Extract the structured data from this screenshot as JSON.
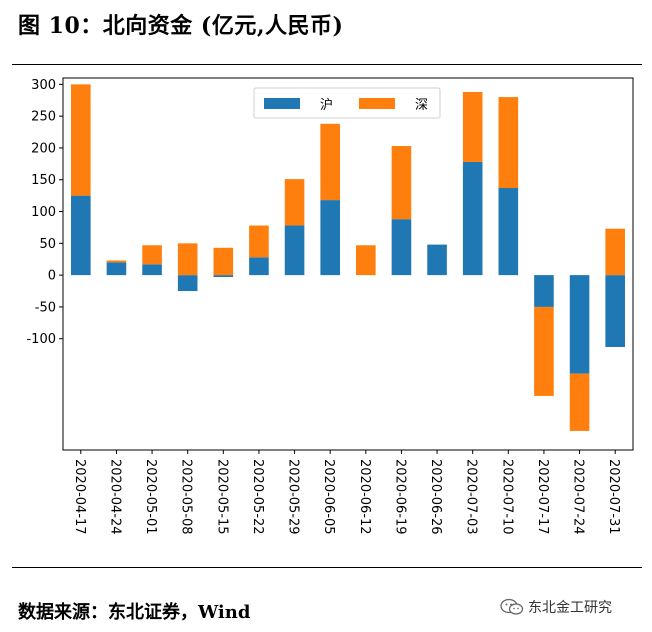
{
  "header": {
    "title": "图 10：北向资金 (亿元,人民币)"
  },
  "footer": {
    "source": "数据来源：东北证券，Wind",
    "watermark": "东北金工研究",
    "watermark_icon": "wechat-icon"
  },
  "chart_data": {
    "type": "bar",
    "stacked": true,
    "categories": [
      "2020-04-17",
      "2020-04-24",
      "2020-05-01",
      "2020-05-08",
      "2020-05-15",
      "2020-05-22",
      "2020-05-29",
      "2020-06-05",
      "2020-06-12",
      "2020-06-19",
      "2020-06-26",
      "2020-07-03",
      "2020-07-10",
      "2020-07-17",
      "2020-07-24",
      "2020-07-31"
    ],
    "series": [
      {
        "name": "沪",
        "color": "#1f77b4",
        "values": [
          125,
          20,
          17,
          -25,
          -3,
          28,
          78,
          118,
          0,
          88,
          48,
          178,
          137,
          -50,
          -155,
          -113
        ]
      },
      {
        "name": "深",
        "color": "#ff7f0e",
        "values": [
          175,
          3,
          30,
          50,
          43,
          50,
          73,
          120,
          47,
          115,
          0,
          110,
          143,
          -140,
          -90,
          73
        ]
      }
    ],
    "yticks": [
      300,
      250,
      200,
      150,
      100,
      50,
      0,
      -50,
      -100
    ],
    "ylim": [
      -275,
      310
    ],
    "legend": "top-center",
    "grid": false
  }
}
